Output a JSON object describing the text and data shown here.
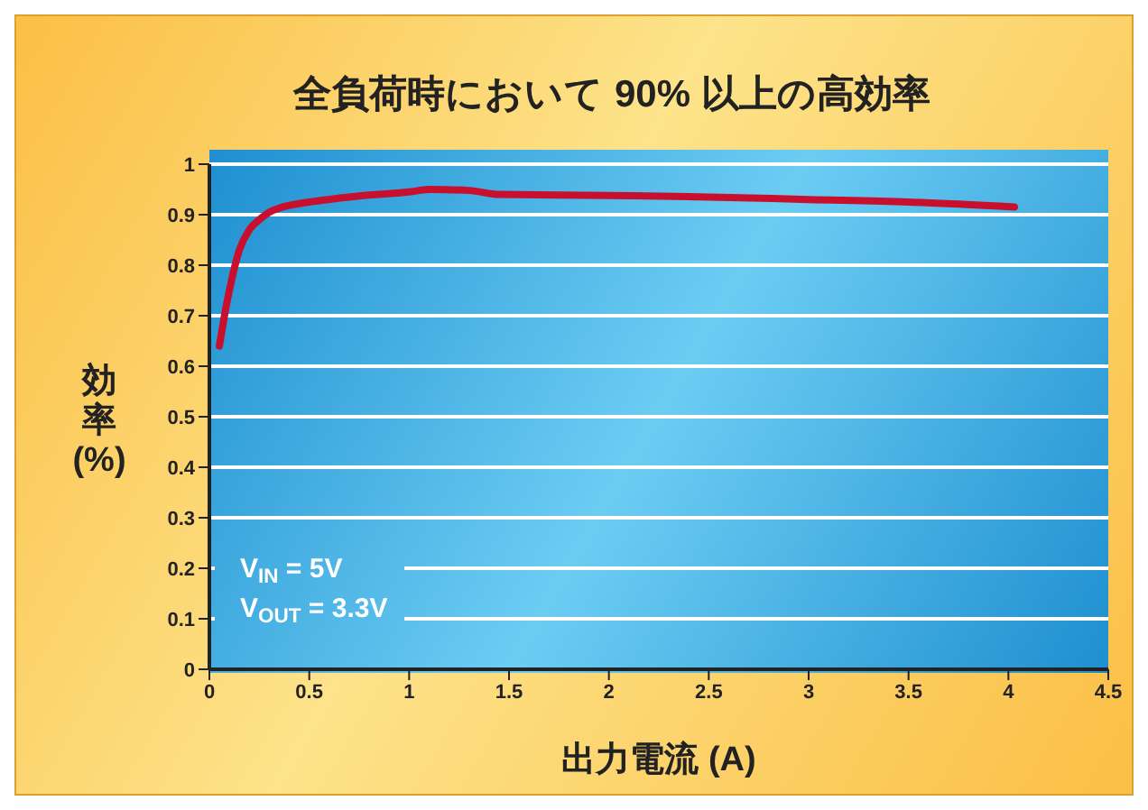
{
  "chart_data": {
    "type": "line",
    "title": "全負荷時において 90% 以上の高効率",
    "xlabel": "出力電流 (A)",
    "ylabel": "効率 (%)",
    "x": [
      0.05,
      0.08,
      0.1,
      0.15,
      0.2,
      0.25,
      0.3,
      0.35,
      0.5,
      0.75,
      1,
      1.1,
      1.3,
      1.45,
      2,
      2.5,
      3,
      3.5,
      4.03
    ],
    "series": [
      {
        "color": "#c8102e",
        "values": [
          0.64,
          0.71,
          0.75,
          0.83,
          0.87,
          0.89,
          0.905,
          0.913,
          0.925,
          0.937,
          0.945,
          0.95,
          0.948,
          0.94,
          0.938,
          0.935,
          0.93,
          0.925,
          0.915
        ]
      }
    ],
    "xlim": [
      0,
      4.5
    ],
    "xticks": [
      0,
      0.5,
      1,
      1.5,
      2,
      2.5,
      3,
      3.5,
      4,
      4.5
    ],
    "ylim": [
      0,
      1
    ],
    "yticks": [
      0,
      0.1,
      0.2,
      0.3,
      0.4,
      0.5,
      0.6,
      0.7,
      0.8,
      0.9,
      1
    ],
    "grid": "y",
    "marker": "none",
    "line_style": "solid",
    "legend": false,
    "annotations": [
      "V$_{IN}$ = 5V",
      "V$_{OUT}$ = 3.3V"
    ]
  }
}
